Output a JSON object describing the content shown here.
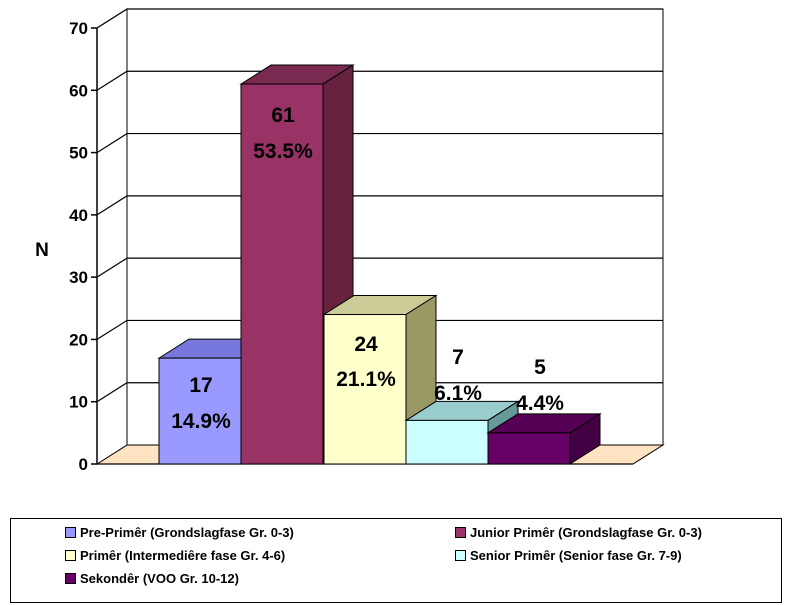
{
  "chart_data": {
    "type": "bar",
    "ylabel": "N",
    "ylim": [
      0,
      70
    ],
    "yticks": [
      "0",
      "10",
      "20",
      "30",
      "40",
      "50",
      "60",
      "70"
    ],
    "grid": true,
    "legend_position": "bottom",
    "series": [
      {
        "name": "Pre-Primêr (Grondslagfase Gr. 0-3)",
        "value": 17,
        "count_label": "17",
        "pct_label": "14.9%",
        "color": "#9999ff",
        "side": "#6666cc",
        "top": "#7777dd"
      },
      {
        "name": "Junior Primêr (Grondslagfase Gr. 0-3)",
        "value": 61,
        "count_label": "61",
        "pct_label": "53.5%",
        "color": "#993366",
        "side": "#66223f",
        "top": "#7a2950"
      },
      {
        "name": "Primêr (Intermediêre fase Gr. 4-6)",
        "value": 24,
        "count_label": "24",
        "pct_label": "21.1%",
        "color": "#ffffcc",
        "side": "#999966",
        "top": "#cccc99"
      },
      {
        "name": "Senior Primêr (Senior fase Gr. 7-9)",
        "value": 7,
        "count_label": "7",
        "pct_label": "6.1%",
        "color": "#ccffff",
        "side": "#669999",
        "top": "#99cccc"
      },
      {
        "name": "Sekondêr (VOO Gr. 10-12)",
        "value": 5,
        "count_label": "5",
        "pct_label": "4.4%",
        "color": "#660066",
        "side": "#440044",
        "top": "#550055"
      }
    ]
  },
  "colors": {
    "floor": "#ffe4c4",
    "axis": "#000000",
    "grid": "#000000"
  }
}
